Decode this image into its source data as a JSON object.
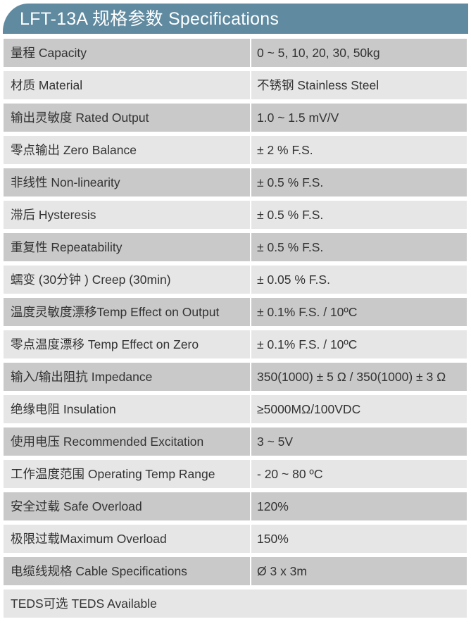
{
  "header": {
    "title": "LFT-13A 规格参数 Specifications",
    "color": "#5f8aa0"
  },
  "rows": [
    {
      "label": "量程 Capacity",
      "value": "0 ~ 5, 10, 20, 30, 50kg"
    },
    {
      "label": "材质 Material",
      "value": "不锈钢 Stainless Steel"
    },
    {
      "label": "输出灵敏度 Rated Output",
      "value": "1.0 ~ 1.5 mV/V"
    },
    {
      "label": "零点输出  Zero Balance",
      "value": "± 2 % F.S."
    },
    {
      "label": "非线性 Non-linearity",
      "value": "± 0.5 % F.S."
    },
    {
      "label": "滞后 Hysteresis",
      "value": "± 0.5 % F.S."
    },
    {
      "label": "重复性 Repeatability",
      "value": "± 0.5 % F.S."
    },
    {
      "label": "蠕变 (30分钟 ) Creep (30min)",
      "value": "± 0.05 % F.S."
    },
    {
      "label": "温度灵敏度漂移Temp Effect on Output",
      "value": "± 0.1% F.S. / 10ºC"
    },
    {
      "label": "零点温度漂移 Temp Effect on Zero",
      "value": "± 0.1% F.S. / 10ºC"
    },
    {
      "label": "输入/输出阻抗 Impedance",
      "value": "350(1000) ± 5 Ω  / 350(1000) ± 3 Ω"
    },
    {
      "label": "绝缘电阻  Insulation",
      "value": "≥5000MΩ/100VDC"
    },
    {
      "label": "使用电压 Recommended Excitation",
      "value": "3 ~ 5V"
    },
    {
      "label": "工作温度范围 Operating Temp  Range",
      "value": "- 20 ~ 80 ºC"
    },
    {
      "label": "安全过载 Safe Overload",
      "value": "120%"
    },
    {
      "label": "极限过载Maximum Overload",
      "value": "150%"
    },
    {
      "label": "电缆线规格 Cable Specifications",
      "value": "Ø 3 x 3m"
    },
    {
      "label": "TEDS可选 TEDS Available"
    }
  ]
}
